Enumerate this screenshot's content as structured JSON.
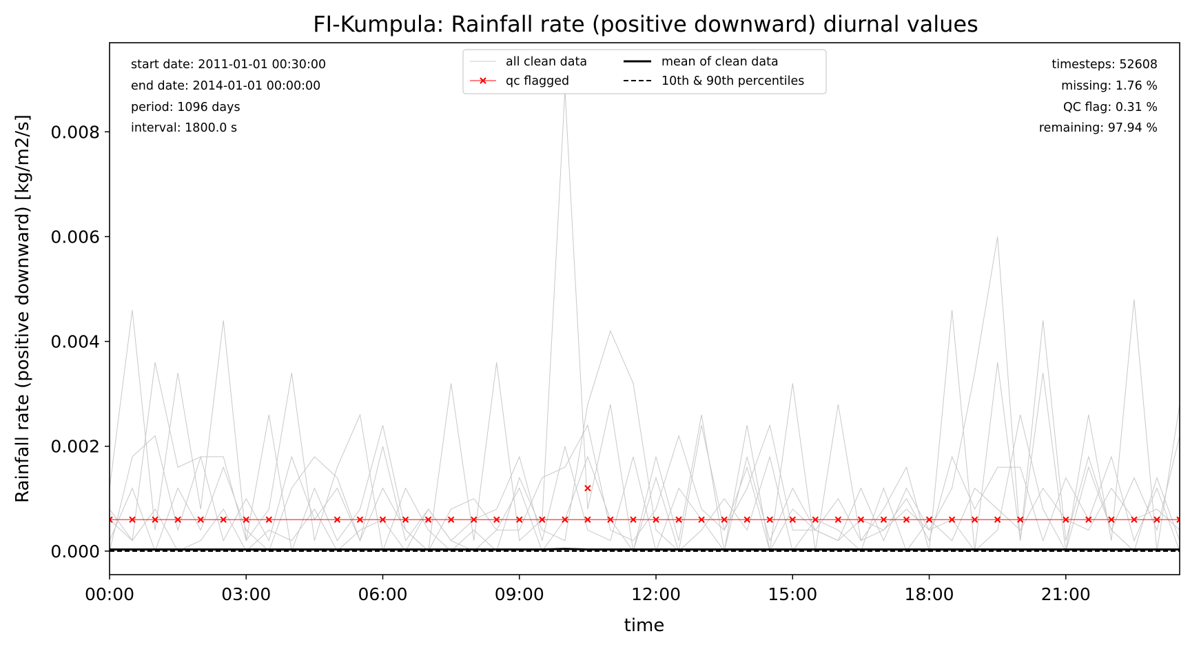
{
  "chart_data": {
    "type": "line",
    "title": "FI-Kumpula: Rainfall rate (positive downward) diurnal values",
    "xlabel": "time",
    "ylabel": "Rainfall rate (positive downward) [kg/m2/s]",
    "xlim": [
      "00:00",
      "23:30"
    ],
    "ylim": [
      -0.00045,
      0.0097
    ],
    "x_ticks": [
      "00:00",
      "03:00",
      "06:00",
      "09:00",
      "12:00",
      "15:00",
      "18:00",
      "21:00"
    ],
    "y_ticks": [
      "0.000",
      "0.002",
      "0.004",
      "0.006",
      "0.008"
    ],
    "y_tick_values": [
      0.0,
      0.002,
      0.004,
      0.006,
      0.008
    ],
    "grid": false,
    "info_left": [
      "start date: 2011-01-01 00:30:00",
      "end date: 2014-01-01 00:00:00",
      "period: 1096 days",
      "interval: 1800.0 s"
    ],
    "info_right": [
      "timesteps: 52608",
      "missing: 1.76 %",
      "QC flag: 0.31 %",
      "remaining: 97.94 %"
    ],
    "legend": {
      "placement": "top-center",
      "entries": [
        {
          "label": "all clean data",
          "style": "thin-gray"
        },
        {
          "label": "qc flagged",
          "style": "red-x"
        },
        {
          "label": "mean of clean data",
          "style": "black-solid"
        },
        {
          "label": "10th & 90th percentiles",
          "style": "black-dashed"
        }
      ]
    },
    "colors": {
      "clean": "#c8c8c8",
      "qc": "#ff0000",
      "mean": "#000000"
    },
    "x_hours": [
      0,
      0.5,
      1,
      1.5,
      2,
      2.5,
      3,
      3.5,
      4,
      4.5,
      5,
      5.5,
      6,
      6.5,
      7,
      7.5,
      8,
      8.5,
      9,
      9.5,
      10,
      10.5,
      11,
      11.5,
      12,
      12.5,
      13,
      13.5,
      14,
      14.5,
      15,
      15.5,
      16,
      16.5,
      17,
      17.5,
      18,
      18.5,
      19,
      19.5,
      20,
      20.5,
      21,
      21.5,
      22,
      22.5,
      23,
      23.5
    ],
    "series": [
      {
        "name": "all clean data",
        "values": [
          0.0012,
          0.0046,
          0.0004,
          0.0034,
          0.0008,
          0.0044,
          0.0002,
          0.0026,
          0.0,
          0.0012,
          0.0002,
          0.0008,
          0.0024,
          0.0004,
          0.0,
          0.0032,
          0.0002,
          0.0036,
          0.0002,
          0.0006,
          0.0088,
          0.0008,
          0.0028,
          0.0,
          0.0018,
          0.0002,
          0.0026,
          0.0,
          0.0024,
          0.0,
          0.0032,
          0.0,
          0.0028,
          0.0002,
          0.0008,
          0.0016,
          0.0,
          0.0046,
          0.0,
          0.0036,
          0.0002,
          0.0034,
          0.0,
          0.0026,
          0.0002,
          0.0048,
          0.0,
          0.0028
        ]
      },
      {
        "name": "all clean data",
        "values": [
          0.0,
          0.0018,
          0.0022,
          0.0004,
          0.0018,
          0.0018,
          0.0002,
          0.0008,
          0.0034,
          0.0002,
          0.0016,
          0.0026,
          0.0,
          0.0012,
          0.0004,
          0.0,
          0.0004,
          0.0,
          0.0014,
          0.0004,
          0.0002,
          0.0028,
          0.0042,
          0.0032,
          0.0004,
          0.0,
          0.0024,
          0.0004,
          0.0016,
          0.0,
          0.0008,
          0.0004,
          0.0002,
          0.0012,
          0.0002,
          0.0012,
          0.0004,
          0.0012,
          0.0034,
          0.006,
          0.0002,
          0.0044,
          0.0002,
          0.0018,
          0.0004,
          0.0014,
          0.0004,
          0.0022
        ]
      },
      {
        "name": "all clean data",
        "values": [
          0.0006,
          0.0002,
          0.0036,
          0.0016,
          0.0018,
          0.0002,
          0.001,
          0.0002,
          0.0018,
          0.0006,
          0.0012,
          0.0002,
          0.002,
          0.0002,
          0.0008,
          0.0002,
          0.0006,
          0.0008,
          0.0018,
          0.0002,
          0.002,
          0.0004,
          0.0002,
          0.0018,
          0.0,
          0.0012,
          0.0006,
          0.0,
          0.0018,
          0.0002,
          0.0012,
          0.0004,
          0.001,
          0.0002,
          0.0004,
          0.001,
          0.0002,
          0.0018,
          0.0008,
          0.0016,
          0.0016,
          0.0002,
          0.0014,
          0.0006,
          0.0018,
          0.0002,
          0.0012,
          0.0
        ]
      },
      {
        "name": "all clean data",
        "values": [
          0.0002,
          0.0012,
          0.0,
          0.0012,
          0.0004,
          0.0016,
          0.0004,
          0.0,
          0.0012,
          0.0018,
          0.0014,
          0.0002,
          0.0012,
          0.0004,
          0.0,
          0.0008,
          0.001,
          0.0004,
          0.0004,
          0.0014,
          0.0016,
          0.0024,
          0.0004,
          0.0002,
          0.0008,
          0.0022,
          0.0008,
          0.0004,
          0.0012,
          0.0024,
          0.0004,
          0.0004,
          0.0002,
          0.0006,
          0.0004,
          0.0008,
          0.0004,
          0.0006,
          0.0,
          0.0004,
          0.0026,
          0.0008,
          0.0,
          0.0016,
          0.0004,
          0.0,
          0.0014,
          0.0002
        ]
      },
      {
        "name": "all clean data",
        "values": [
          0.0008,
          0.0002,
          0.0008,
          0.0,
          0.0002,
          0.0008,
          0.0,
          0.0004,
          0.0002,
          0.0008,
          0.0,
          0.0004,
          0.0006,
          0.0,
          0.0008,
          0.0002,
          0.0,
          0.0004,
          0.0012,
          0.0,
          0.0006,
          0.0018,
          0.0006,
          0.0,
          0.0014,
          0.0,
          0.0004,
          0.001,
          0.0004,
          0.0018,
          0.0,
          0.0006,
          0.0004,
          0.0,
          0.0012,
          0.0,
          0.0006,
          0.0002,
          0.0012,
          0.0008,
          0.0004,
          0.0012,
          0.0006,
          0.0004,
          0.0012,
          0.0006,
          0.0008,
          0.0004
        ]
      }
    ],
    "qc_flagged": {
      "name": "qc flagged",
      "values": [
        0.0006,
        0.0006,
        0.0006,
        0.0006,
        0.0006,
        0.0006,
        0.0006,
        0.0006,
        null,
        null,
        0.0006,
        0.0006,
        0.0006,
        0.0006,
        0.0006,
        0.0006,
        0.0006,
        0.0006,
        0.0006,
        0.0006,
        0.0006,
        0.0006,
        0.0006,
        0.0006,
        0.0006,
        0.0006,
        0.0006,
        0.0006,
        0.0006,
        0.0006,
        0.0006,
        0.0006,
        0.0006,
        0.0006,
        0.0006,
        0.0006,
        0.0006,
        0.0006,
        0.0006,
        0.0006,
        0.0006,
        null,
        0.0006,
        0.0006,
        0.0006,
        0.0006,
        0.0006,
        0.0006
      ],
      "extra_points": [
        {
          "x": 10.5,
          "y": 0.0012
        }
      ]
    },
    "mean": {
      "name": "mean of clean data",
      "values": [
        3e-05,
        3e-05,
        3e-05,
        3e-05,
        3e-05,
        3e-05,
        3e-05,
        3e-05,
        3e-05,
        3e-05,
        3e-05,
        3e-05,
        3e-05,
        3e-05,
        3e-05,
        3e-05,
        3e-05,
        3e-05,
        3e-05,
        3e-05,
        4e-05,
        3e-05,
        3e-05,
        3e-05,
        3e-05,
        3e-05,
        3e-05,
        3e-05,
        3e-05,
        3e-05,
        3e-05,
        3e-05,
        3e-05,
        3e-05,
        3e-05,
        3e-05,
        3e-05,
        3e-05,
        3e-05,
        3e-05,
        3e-05,
        3e-05,
        3e-05,
        3e-05,
        3e-05,
        3e-05,
        3e-05,
        3e-05
      ]
    },
    "percentiles": {
      "name": "10th & 90th percentiles",
      "p10": 0.0,
      "p90": 0.0
    }
  }
}
